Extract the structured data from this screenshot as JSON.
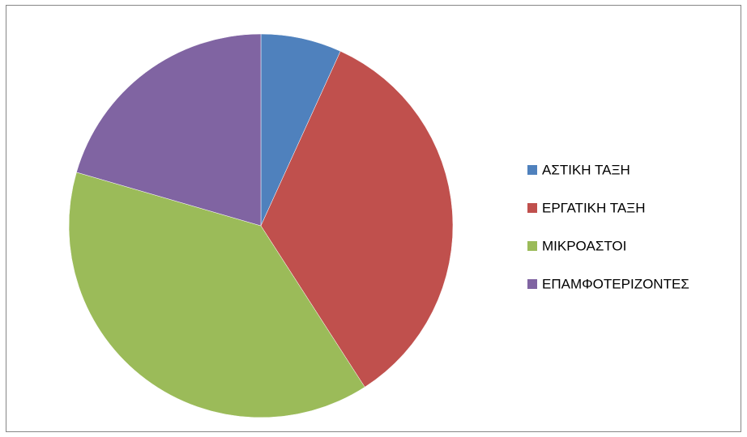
{
  "chart_data": {
    "type": "pie",
    "categories": [
      "ΑΣΤΙΚΗ ΤΑΞΗ",
      "ΕΡΓΑΤΙΚΗ ΤΑΞΗ",
      "ΜΙΚΡΟΑΣΤΟΙ",
      "ΕΠΑΜΦΟΤΕΡΙΖΟΝΤΕΣ"
    ],
    "values": [
      6.8,
      34.1,
      38.6,
      20.5
    ],
    "colors": [
      "#4f81bd",
      "#c0504d",
      "#9bbb59",
      "#8064a2"
    ]
  }
}
